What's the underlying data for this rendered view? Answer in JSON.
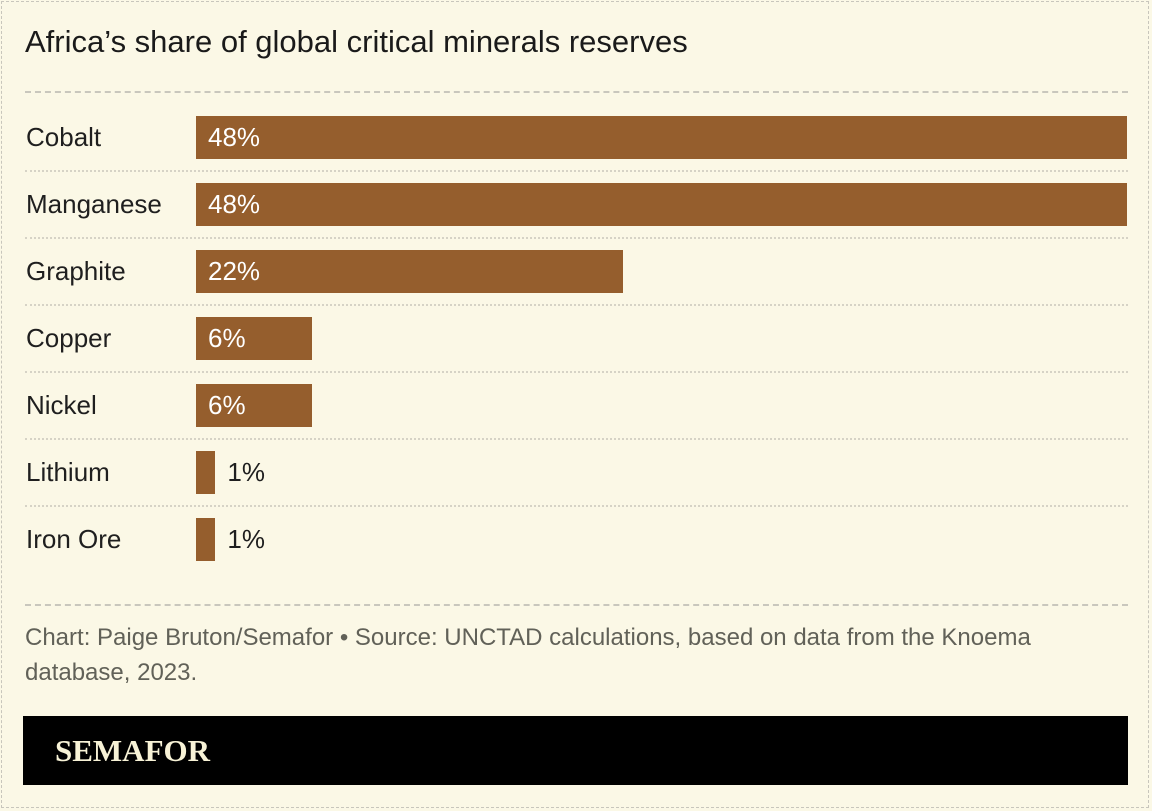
{
  "chart_data": {
    "type": "bar",
    "orientation": "horizontal",
    "title": "Africa’s share of global critical minerals reserves",
    "categories": [
      "Cobalt",
      "Manganese",
      "Graphite",
      "Copper",
      "Nickel",
      "Lithium",
      "Iron Ore"
    ],
    "values": [
      48,
      48,
      22,
      6,
      6,
      1,
      1
    ],
    "value_labels": [
      "48%",
      "48%",
      "22%",
      "6%",
      "6%",
      "1%",
      "1%"
    ],
    "unit": "%",
    "bar_color": "#955e2d",
    "grid": false
  },
  "footer": {
    "source": "Chart: Paige Bruton/Semafor • Source: UNCTAD calculations, based on data from the Knoema database, 2023."
  },
  "brand": {
    "logo_text": "SEMAFOR"
  }
}
